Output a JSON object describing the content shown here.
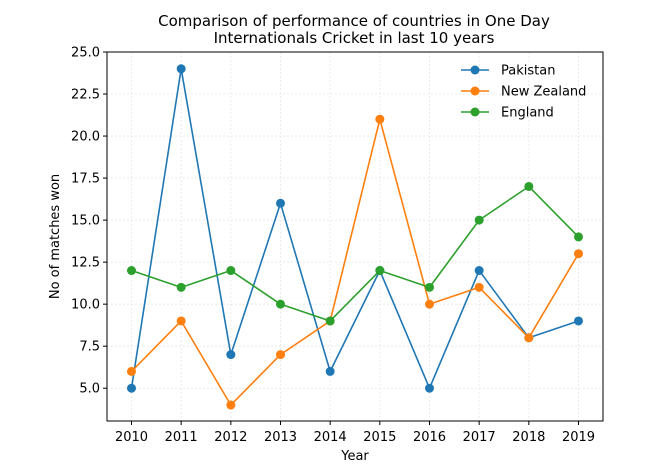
{
  "chart_data": {
    "type": "line",
    "title_lines": [
      "Comparison of performance of countries in One Day",
      "Internationals Cricket in last 10 years"
    ],
    "xlabel": "Year",
    "ylabel": "No of matches won",
    "x": [
      2010,
      2011,
      2012,
      2013,
      2014,
      2015,
      2016,
      2017,
      2018,
      2019
    ],
    "x_tick_labels": [
      "2010",
      "2011",
      "2012",
      "2013",
      "2014",
      "2015",
      "2016",
      "2017",
      "2018",
      "2019"
    ],
    "ylim": [
      3.05,
      25.0
    ],
    "y_ticks": [
      5.0,
      7.5,
      10.0,
      12.5,
      15.0,
      17.5,
      20.0,
      22.5,
      25.0
    ],
    "y_tick_labels": [
      "5.0",
      "7.5",
      "10.0",
      "12.5",
      "15.0",
      "17.5",
      "20.0",
      "22.5",
      "25.0"
    ],
    "grid": true,
    "legend_position": "top-right",
    "series": [
      {
        "name": "Pakistan",
        "color": "#1f77b4",
        "values": [
          5,
          24,
          7,
          16,
          6,
          12,
          5,
          12,
          8,
          9
        ]
      },
      {
        "name": "New Zealand",
        "color": "#ff7f0e",
        "values": [
          6,
          9,
          4,
          7,
          9,
          21,
          10,
          11,
          8,
          13
        ]
      },
      {
        "name": "England",
        "color": "#2ca02c",
        "values": [
          12,
          11,
          12,
          10,
          9,
          12,
          11,
          15,
          17,
          14
        ]
      }
    ]
  }
}
